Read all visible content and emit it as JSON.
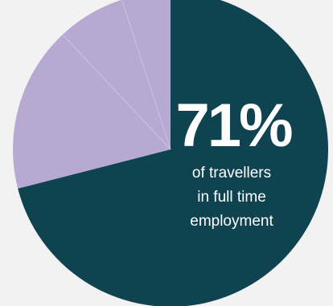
{
  "chart_data": {
    "type": "pie",
    "slices": [
      {
        "value": 71,
        "color": "#0f4350"
      },
      {
        "value": 17,
        "color": "#b8a9d3"
      },
      {
        "value": 7,
        "color": "#b8a9d3"
      },
      {
        "value": 5,
        "color": "#b8a9d3"
      }
    ],
    "highlight_value": "71%",
    "highlight_caption": [
      "of travellers",
      "in full time",
      "employment"
    ],
    "colors": {
      "primary": "#0f4350",
      "secondary": "#b8a9d3",
      "divider": "#cdc2e2",
      "text": "#ffffff",
      "background": "#f2f2f2"
    }
  }
}
